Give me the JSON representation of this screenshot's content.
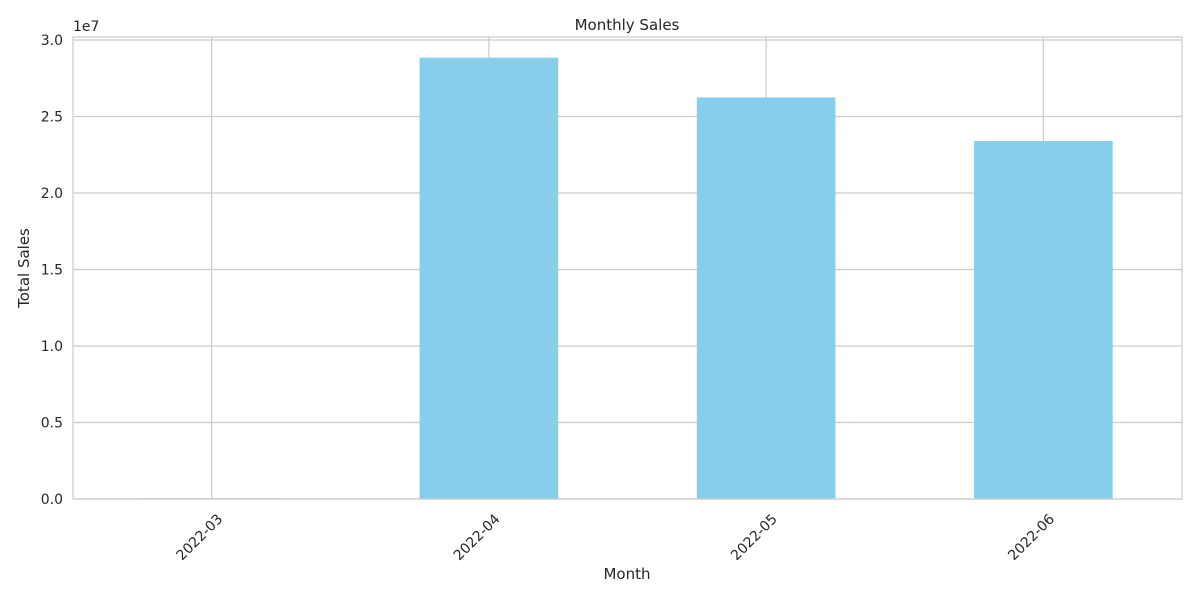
{
  "chart_data": {
    "type": "bar",
    "title": "Monthly Sales",
    "xlabel": "Month",
    "ylabel": "Total Sales",
    "categories": [
      "2022-03",
      "2022-04",
      "2022-05",
      "2022-06"
    ],
    "values": [
      50000,
      28850000,
      26250000,
      23400000
    ],
    "ylim": [
      0,
      30200000
    ],
    "y_ticks": [
      0,
      5000000,
      10000000,
      15000000,
      20000000,
      25000000,
      30000000
    ],
    "y_tick_labels": [
      "0.0",
      "0.5",
      "1.0",
      "1.5",
      "2.0",
      "2.5",
      "3.0"
    ],
    "y_offset_label": "1e7",
    "grid": true,
    "x_tick_rotation_deg": 45,
    "bar_color": "#87ceeb",
    "grid_color": "#cccccc",
    "axis_color": "#cccccc",
    "text_color": "#262626"
  }
}
